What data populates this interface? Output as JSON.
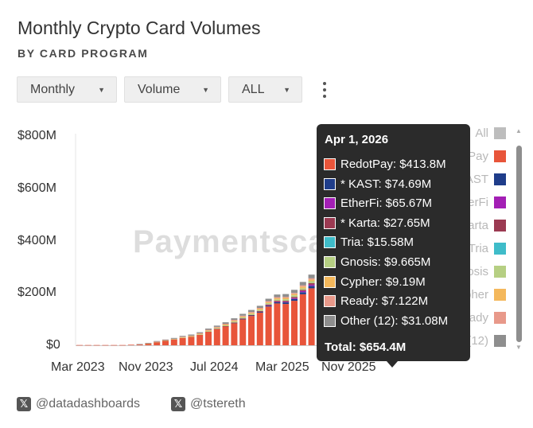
{
  "header": {
    "title": "Monthly Crypto Card Volumes",
    "subtitle": "BY CARD PROGRAM"
  },
  "controls": {
    "period": "Monthly",
    "metric": "Volume",
    "filter": "ALL"
  },
  "watermark": "Paymentsca",
  "footer": {
    "handle1": "@datadashboards",
    "handle2": "@tstereth"
  },
  "tooltip": {
    "date": "Apr 1, 2026",
    "total": "Total: $654.4M"
  },
  "legend": [
    {
      "label": "All",
      "color": "#bdbdbd"
    },
    {
      "label": "RedotPay",
      "color": "#e8553a"
    },
    {
      "label": "KAST",
      "color": "#1f3d8a"
    },
    {
      "label": "EtherFi",
      "color": "#a31fb5"
    },
    {
      "label": "* Karta",
      "color": "#9b3a52"
    },
    {
      "label": "Tria",
      "color": "#3fbcc9"
    },
    {
      "label": "Gnosis",
      "color": "#b6cf83"
    },
    {
      "label": "Cypher",
      "color": "#f4b85c"
    },
    {
      "label": "Ready",
      "color": "#e8998a"
    },
    {
      "label": "Other (12)",
      "color": "#8e8e8e"
    }
  ],
  "chart_data": {
    "type": "bar",
    "stacked": true,
    "title": "Monthly Crypto Card Volumes",
    "subtitle": "BY CARD PROGRAM",
    "ylim": [
      0,
      800
    ],
    "y_unit": "$M",
    "y_ticks": [
      "$0",
      "$200M",
      "$400M",
      "$600M",
      "$800M"
    ],
    "x_ticks": [
      "Mar 2023",
      "Nov 2023",
      "Jul 2024",
      "Mar 2025",
      "Nov 2025"
    ],
    "grid": false,
    "legend_position": "right",
    "months": [
      "Mar 2023",
      "Apr 2023",
      "May 2023",
      "Jun 2023",
      "Jul 2023",
      "Aug 2023",
      "Sep 2023",
      "Oct 2023",
      "Nov 2023",
      "Dec 2023",
      "Jan 2024",
      "Feb 2024",
      "Mar 2024",
      "Apr 2024",
      "May 2024",
      "Jun 2024",
      "Jul 2024",
      "Aug 2024",
      "Sep 2024",
      "Oct 2024",
      "Nov 2024",
      "Dec 2024",
      "Jan 2025",
      "Feb 2025",
      "Mar 2025",
      "Apr 2025",
      "May 2025",
      "Jun 2025",
      "Jul 2025",
      "Aug 2025",
      "Sep 2025",
      "Oct 2025",
      "Nov 2025",
      "Dec 2025",
      "Jan 2026",
      "Feb 2026",
      "Mar 2026",
      "Apr 2026"
    ],
    "series": [
      {
        "name": "RedotPay",
        "values": [
          1,
          1,
          1,
          1,
          1,
          1,
          2,
          3,
          6,
          12,
          18,
          22,
          28,
          32,
          40,
          52,
          62,
          72,
          85,
          100,
          112,
          125,
          148,
          160,
          158,
          170,
          195,
          218,
          240,
          255,
          300,
          345,
          370,
          400,
          390,
          380,
          400,
          413.8
        ]
      },
      {
        "name": "KAST",
        "values": [
          0,
          0,
          0,
          0,
          0,
          0,
          0,
          0,
          0,
          0,
          0,
          0,
          0,
          0,
          0,
          0,
          0,
          0,
          1,
          1,
          2,
          3,
          4,
          5,
          6,
          7,
          8,
          9,
          10,
          11,
          12,
          13,
          15,
          18,
          20,
          22,
          25,
          74.69
        ]
      },
      {
        "name": "EtherFi",
        "values": [
          0,
          0,
          0,
          0,
          0,
          0,
          0,
          0,
          0,
          0,
          0,
          0,
          0,
          0,
          0,
          0,
          0,
          0,
          0,
          0,
          0,
          0,
          1,
          1,
          2,
          3,
          4,
          5,
          7,
          9,
          11,
          14,
          18,
          22,
          28,
          35,
          45,
          65.67
        ]
      },
      {
        "name": "* Karta",
        "values": [
          0,
          0,
          0,
          0,
          0,
          0,
          0,
          0,
          0,
          0,
          0,
          0,
          0,
          0,
          0,
          0,
          1,
          1,
          1,
          2,
          2,
          3,
          3,
          4,
          4,
          5,
          5,
          6,
          6,
          7,
          8,
          9,
          10,
          12,
          14,
          16,
          20,
          27.65
        ]
      },
      {
        "name": "Tria",
        "values": [
          0,
          0,
          0,
          0,
          0,
          0,
          0,
          0,
          0,
          0,
          0,
          0,
          0,
          0,
          0,
          0,
          0,
          0,
          0,
          0,
          0,
          0,
          0,
          0,
          0,
          0,
          0,
          0,
          1,
          1,
          2,
          3,
          4,
          6,
          8,
          10,
          12,
          15.58
        ]
      },
      {
        "name": "Gnosis",
        "values": [
          0,
          0,
          0,
          0,
          0,
          0,
          0,
          0,
          1,
          1,
          1,
          1,
          2,
          2,
          2,
          3,
          3,
          3,
          4,
          4,
          4,
          5,
          5,
          5,
          6,
          6,
          6,
          7,
          7,
          7,
          8,
          8,
          8,
          9,
          9,
          9,
          9,
          9.665
        ]
      },
      {
        "name": "Cypher",
        "values": [
          0,
          0,
          0,
          0,
          0,
          0,
          0,
          0,
          0,
          0,
          0,
          1,
          1,
          1,
          2,
          2,
          2,
          3,
          3,
          3,
          4,
          4,
          4,
          5,
          5,
          5,
          6,
          6,
          6,
          7,
          7,
          7,
          8,
          8,
          8,
          9,
          9,
          9.19
        ]
      },
      {
        "name": "Ready",
        "values": [
          0,
          0,
          0,
          0,
          0,
          0,
          0,
          1,
          1,
          1,
          1,
          1,
          2,
          2,
          2,
          2,
          2,
          3,
          3,
          3,
          3,
          3,
          4,
          4,
          4,
          4,
          5,
          5,
          5,
          5,
          6,
          6,
          6,
          6,
          7,
          7,
          7,
          7.122
        ]
      },
      {
        "name": "Other (12)",
        "values": [
          0,
          0,
          0,
          0,
          0,
          0,
          0,
          1,
          1,
          2,
          2,
          3,
          3,
          4,
          4,
          5,
          5,
          6,
          6,
          7,
          8,
          8,
          9,
          10,
          11,
          12,
          13,
          14,
          15,
          16,
          17,
          18,
          20,
          22,
          24,
          26,
          28,
          31.08
        ]
      }
    ],
    "tooltip_values": [
      {
        "name": "RedotPay",
        "value": "$413.8M",
        "color": "#e8553a"
      },
      {
        "name": "* KAST",
        "value": "$74.69M",
        "color": "#1f3d8a"
      },
      {
        "name": "EtherFi",
        "value": "$65.67M",
        "color": "#a31fb5"
      },
      {
        "name": "* Karta",
        "value": "$27.65M",
        "color": "#9b3a52"
      },
      {
        "name": "Tria",
        "value": "$15.58M",
        "color": "#3fbcc9"
      },
      {
        "name": "Gnosis",
        "value": "$9.665M",
        "color": "#b6cf83"
      },
      {
        "name": "Cypher",
        "value": "$9.19M",
        "color": "#f4b85c"
      },
      {
        "name": "Ready",
        "value": "$7.122M",
        "color": "#e8998a"
      },
      {
        "name": "Other (12)",
        "value": "$31.08M",
        "color": "#8e8e8e"
      }
    ]
  }
}
